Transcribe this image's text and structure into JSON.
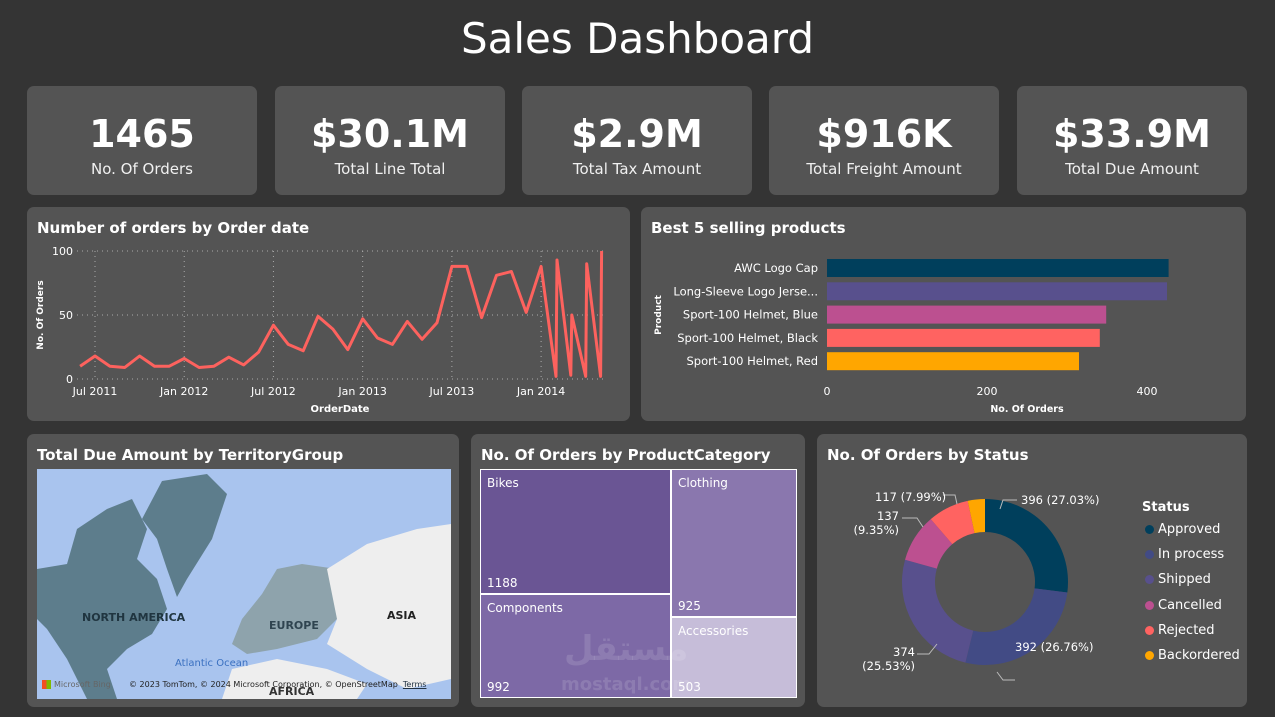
{
  "title": "Sales Dashboard",
  "kpis": [
    {
      "value": "1465",
      "label": "No. Of Orders"
    },
    {
      "value": "$30.1M",
      "label": "Total Line Total"
    },
    {
      "value": "$2.9M",
      "label": "Total Tax Amount"
    },
    {
      "value": "$916K",
      "label": "Total Freight Amount"
    },
    {
      "value": "$33.9M",
      "label": "Total Due Amount"
    }
  ],
  "map": {
    "title": "Total Due Amount by TerritoryGroup",
    "labels": [
      "NORTH AMERICA",
      "EUROPE",
      "ASIA",
      "Atlantic Ocean",
      "AFRICA"
    ],
    "attribution": "© 2023 TomTom, © 2024 Microsoft Corporation, © OpenStreetMap",
    "terms": "Terms",
    "brand": "Microsoft Bing"
  },
  "watermark": "مستقل mostaql.com",
  "chart_data": [
    {
      "type": "line",
      "title": "Number of orders by Order date",
      "xlabel": "OrderDate",
      "ylabel": "No. Of Orders",
      "color": "#fd625e",
      "grid": true,
      "xticks": [
        "Jul 2011",
        "Jan 2012",
        "Jul 2012",
        "Jan 2013",
        "Jul 2013",
        "Jan 2014"
      ],
      "yticks": [
        0,
        50,
        100
      ],
      "ylim": [
        0,
        100
      ],
      "x": [
        "2011-06",
        "2011-07",
        "2011-08",
        "2011-09",
        "2011-10",
        "2011-11",
        "2011-12",
        "2012-01",
        "2012-02",
        "2012-03",
        "2012-04",
        "2012-05",
        "2012-06",
        "2012-07",
        "2012-08",
        "2012-09",
        "2012-10",
        "2012-11",
        "2012-12",
        "2013-01",
        "2013-02",
        "2013-03",
        "2013-04",
        "2013-05",
        "2013-06",
        "2013-07",
        "2013-08",
        "2013-09",
        "2013-10",
        "2013-11",
        "2013-12",
        "2014-01",
        "2014-02",
        "2014-02",
        "2014-03",
        "2014-03",
        "2014-04",
        "2014-04",
        "2014-05",
        "2014-05"
      ],
      "y": [
        10,
        18,
        10,
        9,
        18,
        10,
        10,
        16,
        9,
        10,
        17,
        11,
        21,
        42,
        27,
        22,
        49,
        39,
        23,
        47,
        32,
        27,
        45,
        31,
        44,
        88,
        88,
        48,
        81,
        84,
        52,
        88,
        2,
        93,
        3,
        50,
        2,
        90,
        2,
        100
      ]
    },
    {
      "type": "bar",
      "orientation": "horizontal",
      "title": "Best 5 selling products",
      "xlabel": "No. Of Orders",
      "ylabel": "Product",
      "xticks": [
        0,
        200,
        400
      ],
      "xlim": [
        0,
        460
      ],
      "categories": [
        "AWC Logo Cap",
        "Long-Sleeve Logo Jerse...",
        "Sport-100 Helmet, Blue",
        "Sport-100 Helmet, Black",
        "Sport-100 Helmet, Red"
      ],
      "values": [
        427,
        425,
        349,
        341,
        315
      ],
      "colors": [
        "#003f5c",
        "#58508d",
        "#bc5090",
        "#ff6361",
        "#ffa600"
      ]
    },
    {
      "type": "treemap",
      "title": "No. Of Orders by ProductCategory",
      "categories": [
        "Bikes",
        "Clothing",
        "Components",
        "Accessories"
      ],
      "values": [
        1188,
        925,
        992,
        503
      ],
      "colors": [
        "#6a5594",
        "#8a77ae",
        "#7d69a6",
        "#c6bdd9"
      ]
    },
    {
      "type": "pie",
      "donut": true,
      "title": "No. Of Orders by Status",
      "legend_title": "Status",
      "legend": "right",
      "categories": [
        "Approved",
        "In process",
        "Shipped",
        "Cancelled",
        "Rejected",
        "Backordered"
      ],
      "values": [
        396,
        392,
        374,
        137,
        117,
        49
      ],
      "labels": [
        "396 (27.03%)",
        "392 (26.76%)",
        "374 (25.53%)",
        "137 (9.35%)",
        "117 (7.99%)",
        ""
      ],
      "colors": [
        "#003f5c",
        "#424b85",
        "#58508d",
        "#bc5090",
        "#ff6361",
        "#ffa600"
      ]
    }
  ]
}
